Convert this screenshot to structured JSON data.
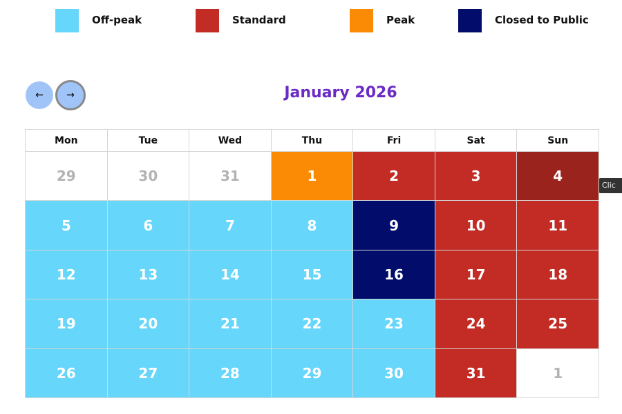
{
  "legend": [
    {
      "label": "Off-peak",
      "color": "#66d6fb"
    },
    {
      "label": "Standard",
      "color": "#c22c25"
    },
    {
      "label": "Peak",
      "color": "#fb8a04"
    },
    {
      "label": "Closed to Public",
      "color": "#020d6b"
    }
  ],
  "calendar": {
    "title": "January 2026",
    "weekdays": [
      "Mon",
      "Tue",
      "Wed",
      "Thu",
      "Fri",
      "Sat",
      "Sun"
    ],
    "weeks": [
      [
        {
          "day": "29",
          "type": null
        },
        {
          "day": "30",
          "type": null
        },
        {
          "day": "31",
          "type": null
        },
        {
          "day": "1",
          "type": "Peak"
        },
        {
          "day": "2",
          "type": "Standard"
        },
        {
          "day": "3",
          "type": "Standard"
        },
        {
          "day": "4",
          "type": "Standard",
          "hovered": true
        }
      ],
      [
        {
          "day": "5",
          "type": "Off-peak"
        },
        {
          "day": "6",
          "type": "Off-peak"
        },
        {
          "day": "7",
          "type": "Off-peak"
        },
        {
          "day": "8",
          "type": "Off-peak"
        },
        {
          "day": "9",
          "type": "Closed to Public"
        },
        {
          "day": "10",
          "type": "Standard"
        },
        {
          "day": "11",
          "type": "Standard"
        }
      ],
      [
        {
          "day": "12",
          "type": "Off-peak"
        },
        {
          "day": "13",
          "type": "Off-peak"
        },
        {
          "day": "14",
          "type": "Off-peak"
        },
        {
          "day": "15",
          "type": "Off-peak"
        },
        {
          "day": "16",
          "type": "Closed to Public"
        },
        {
          "day": "17",
          "type": "Standard"
        },
        {
          "day": "18",
          "type": "Standard"
        }
      ],
      [
        {
          "day": "19",
          "type": "Off-peak"
        },
        {
          "day": "20",
          "type": "Off-peak"
        },
        {
          "day": "21",
          "type": "Off-peak"
        },
        {
          "day": "22",
          "type": "Off-peak"
        },
        {
          "day": "23",
          "type": "Off-peak"
        },
        {
          "day": "24",
          "type": "Standard"
        },
        {
          "day": "25",
          "type": "Standard"
        }
      ],
      [
        {
          "day": "26",
          "type": "Off-peak"
        },
        {
          "day": "27",
          "type": "Off-peak"
        },
        {
          "day": "28",
          "type": "Off-peak"
        },
        {
          "day": "29",
          "type": "Off-peak"
        },
        {
          "day": "30",
          "type": "Off-peak"
        },
        {
          "day": "31",
          "type": "Standard"
        },
        {
          "day": "1",
          "type": null
        }
      ]
    ]
  },
  "tooltip": "Clic"
}
